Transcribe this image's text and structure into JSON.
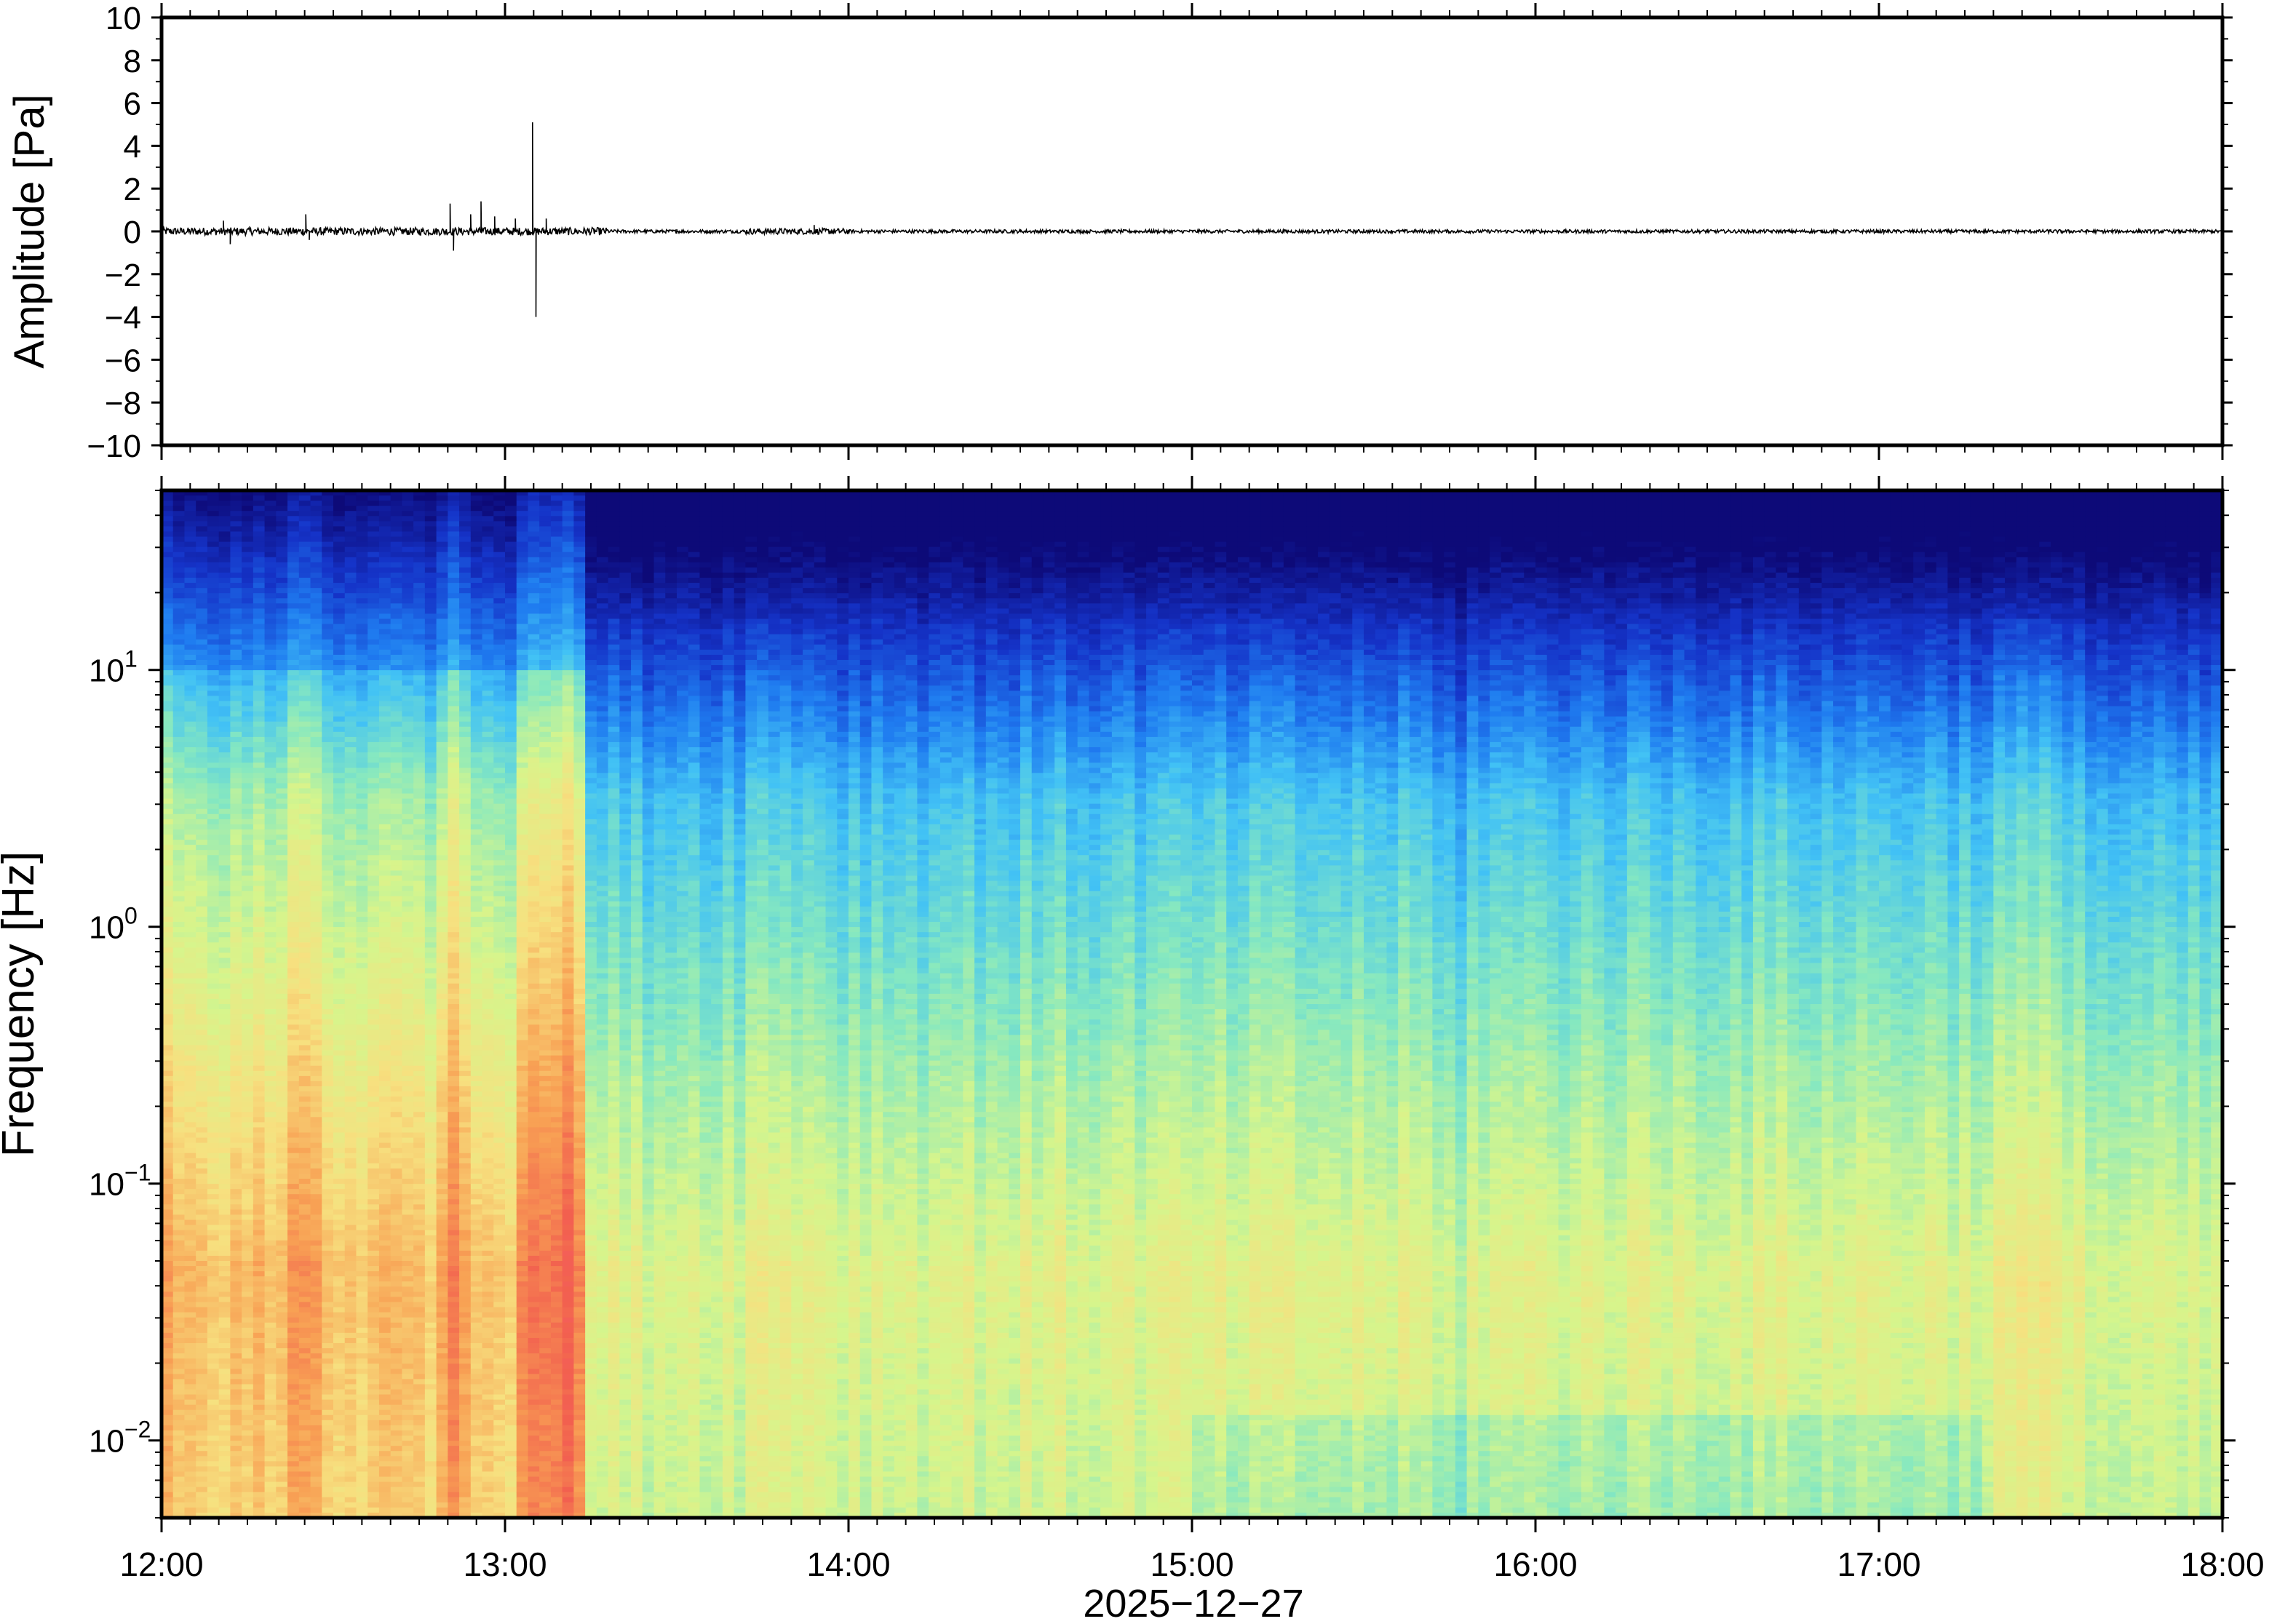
{
  "chart_data": [
    {
      "type": "line",
      "panel": "waveform",
      "title": "",
      "xlabel": "",
      "ylabel": "Amplitude [Pa]",
      "ylim": [
        -10,
        10
      ],
      "yticks": [
        10,
        8,
        6,
        4,
        2,
        0,
        -2,
        -4,
        -6,
        -8,
        -10
      ],
      "ytick_labels": [
        "10",
        "8",
        "6",
        "4",
        "2",
        "0",
        "−2",
        "−4",
        "−6",
        "−8",
        "−10"
      ],
      "xlim": [
        "12:00",
        "18:00"
      ],
      "series": [
        {
          "x_hours": [
            12.0,
            12.18,
            12.2,
            12.42,
            12.43,
            12.84,
            12.85,
            12.9,
            12.93,
            12.97,
            13.03,
            13.08,
            13.09,
            13.12,
            13.5,
            13.9,
            14.5,
            15.5,
            16.5,
            17.5,
            18.0
          ],
          "y": [
            0.0,
            0.5,
            -0.6,
            0.8,
            -0.4,
            1.3,
            -0.9,
            0.8,
            1.4,
            0.7,
            0.6,
            5.1,
            -4.0,
            0.6,
            0.1,
            0.3,
            0.1,
            0.1,
            0.1,
            0.1,
            0.0
          ]
        }
      ],
      "grid": false
    },
    {
      "type": "heatmap",
      "panel": "spectrogram",
      "title": "",
      "xlabel": "2025−12−27",
      "ylabel": "Frequency [Hz]",
      "y_scale": "log",
      "ylim": [
        0.005,
        50
      ],
      "yticks": [
        0.01,
        0.1,
        1,
        10
      ],
      "ytick_labels": [
        {
          "base": "10",
          "exp": "−2"
        },
        {
          "base": "10",
          "exp": "−1"
        },
        {
          "base": "10",
          "exp": "0"
        },
        {
          "base": "10",
          "exp": "1"
        }
      ],
      "xticks": [
        "12:00",
        "13:00",
        "14:00",
        "15:00",
        "16:00",
        "17:00",
        "18:00"
      ],
      "xlim": [
        "12:00",
        "18:00"
      ],
      "colormap": [
        "#0d0a78",
        "#1533c8",
        "#1f7cf0",
        "#42c2f5",
        "#86e8c0",
        "#d6f58c",
        "#f7e07f",
        "#f8a154",
        "#f2604f",
        "#f85d6c"
      ],
      "intensity_profile": {
        "note_hours_high_energy": [
          12.0,
          12.45,
          12.85,
          13.1
        ],
        "column_peak_hours": [
          12.05,
          12.18,
          12.42,
          12.85,
          13.1,
          13.9,
          14.5,
          15.75,
          16.4,
          17.4
        ]
      },
      "grid": false
    }
  ]
}
